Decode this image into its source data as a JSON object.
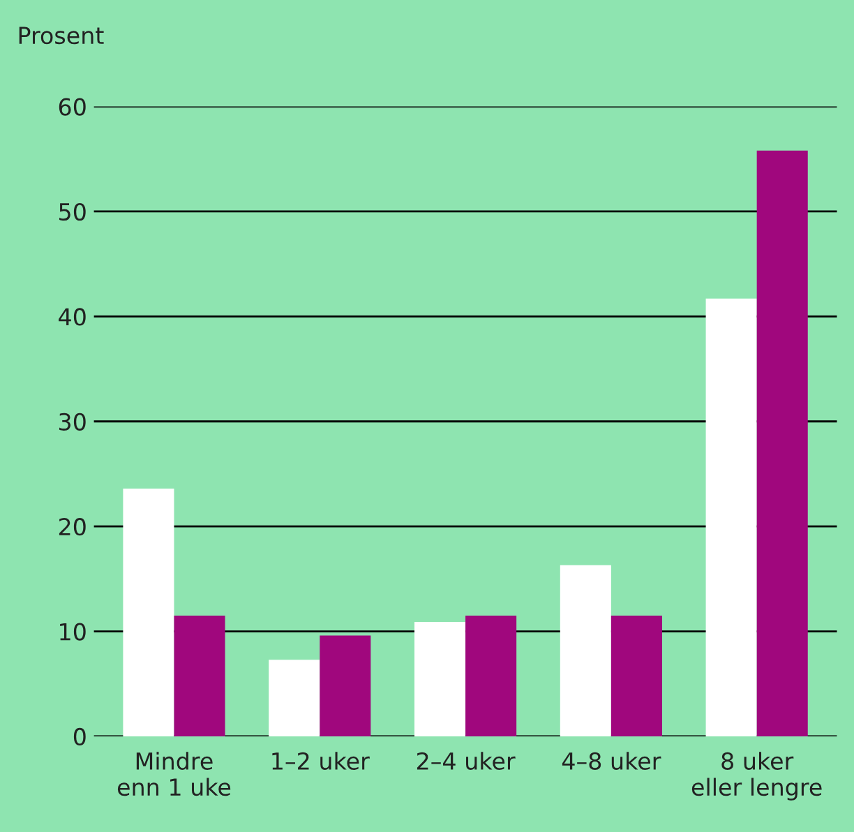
{
  "chart_data": {
    "type": "bar",
    "ylabel": "Prosent",
    "categories": [
      "Mindre\nenn 1 uke",
      "1–2 uker",
      "2–4 uker",
      "4–8 uker",
      "8 uker\neller lengre"
    ],
    "series": [
      {
        "color": "#ffffff",
        "values": [
          23.6,
          7.3,
          10.9,
          16.3,
          41.7
        ]
      },
      {
        "color": "#a0077d",
        "values": [
          11.5,
          9.6,
          11.5,
          11.5,
          55.8
        ]
      }
    ],
    "ylim": [
      0,
      60
    ],
    "yticks": [
      0,
      10,
      20,
      30,
      40,
      50,
      60
    ],
    "grid": "y"
  }
}
